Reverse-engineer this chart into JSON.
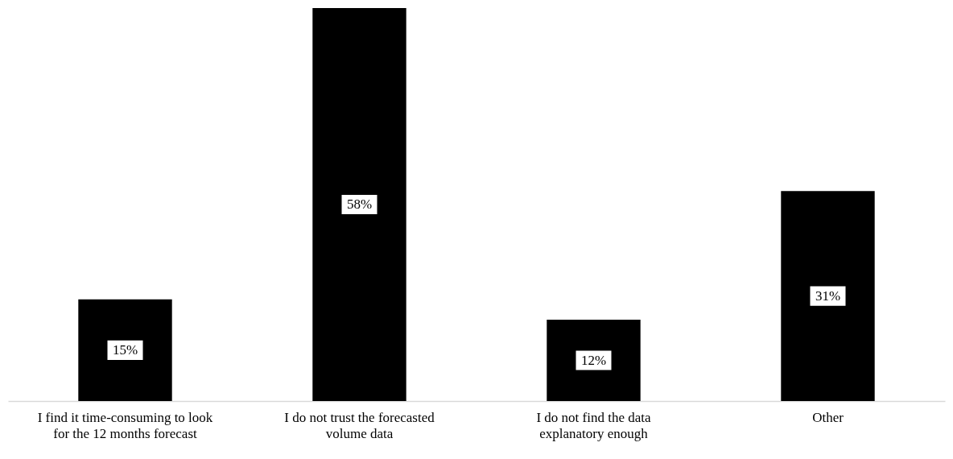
{
  "chart_data": {
    "type": "bar",
    "categories": [
      "I find it time-consuming to look for the 12 months forecast",
      "I do not trust the forecasted volume data",
      "I do not find the data explanatory enough",
      "Other"
    ],
    "values": [
      15,
      58,
      12,
      31
    ],
    "value_labels": [
      "15%",
      "58%",
      "12%",
      "31%"
    ],
    "color": "#000000",
    "ylim": [
      0,
      58
    ]
  }
}
